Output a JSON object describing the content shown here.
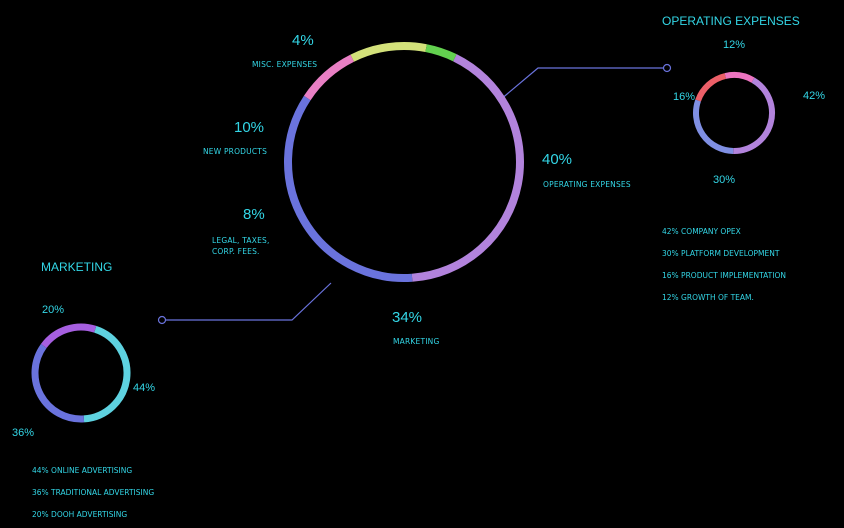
{
  "chart_data": [
    {
      "type": "pie",
      "slices": [
        {
          "label": "OPERATING EXPENSES",
          "value": 40,
          "display": "40%",
          "color": "#b283dc"
        },
        {
          "label": "MARKETING",
          "value": 34,
          "display": "34%",
          "color": "#6a73dd"
        },
        {
          "label": "LEGAL, TAXES, CORP. FEES.",
          "value": 8,
          "display": "8%",
          "color": "#e97fc4"
        },
        {
          "label": "NEW PRODUCTS",
          "value": 10,
          "display": "10%",
          "color": "#d3e17a"
        },
        {
          "label": "MISC. EXPENSES",
          "value": 4,
          "display": "4%",
          "color": "#63d14f"
        }
      ]
    },
    {
      "type": "pie",
      "title": "OPERATING EXPENSES",
      "slices": [
        {
          "label": "COMPANY OPEX",
          "value": 42,
          "display": "42%",
          "color": "#b283dc"
        },
        {
          "label": "PLATFORM DEVELOPMENT",
          "value": 30,
          "display": "30%",
          "color": "#7f8fe3"
        },
        {
          "label": "PRODUCT IMPLEMENTATION",
          "value": 16,
          "display": "16%",
          "color": "#ec5f68"
        },
        {
          "label": "GROWTH OF TEAM",
          "value": 12,
          "display": "12%",
          "color": "#ec74c0"
        }
      ],
      "legend": [
        "42% COMPANY OPEX",
        "30% PLATFORM DEVELOPMENT",
        "16% PRODUCT IMPLEMENTATION",
        "12% GROWTH OF TEAM."
      ]
    },
    {
      "type": "pie",
      "title": "MARKETING",
      "slices": [
        {
          "label": "ONLINE ADVERTISING",
          "value": 44,
          "display": "44%",
          "color": "#5ed2e0"
        },
        {
          "label": "TRADITIONAL ADVERTISING",
          "value": 36,
          "display": "36%",
          "color": "#6a73dd"
        },
        {
          "label": "DOOH ADVERTISING",
          "value": 20,
          "display": "20%",
          "color": "#a65fe0"
        }
      ],
      "legend": [
        "44% ONLINE ADVERTISING",
        "36% TRADITIONAL ADVERTISING",
        "20% DOOH ADVERTISING"
      ]
    }
  ],
  "connector_color": "#6a73dd"
}
